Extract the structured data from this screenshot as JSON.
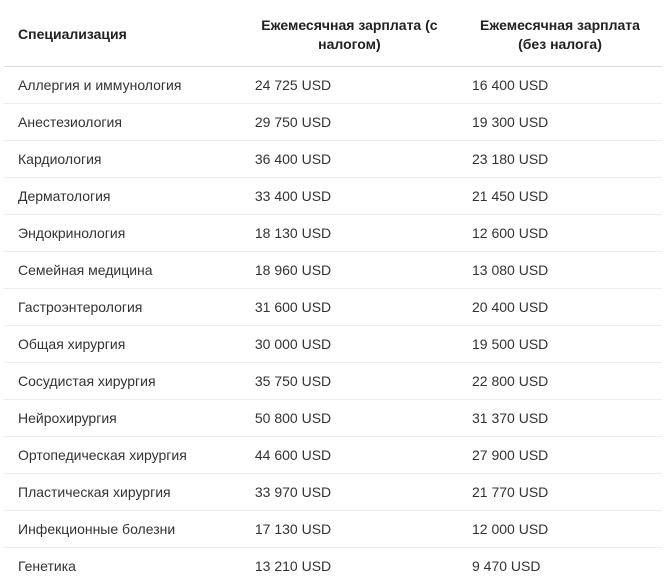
{
  "table": {
    "columns": [
      "Специализация",
      "Ежемесячная зарплата (с налогом)",
      "Ежемесячная зарплата (без налога)"
    ],
    "rows": [
      [
        "Аллергия и иммунология",
        "24 725 USD",
        "16 400 USD"
      ],
      [
        "Анестезиология",
        "29 750 USD",
        "19 300 USD"
      ],
      [
        "Кардиология",
        "36 400 USD",
        "23 180 USD"
      ],
      [
        "Дерматология",
        "33 400 USD",
        "21 450 USD"
      ],
      [
        "Эндокринология",
        "18 130 USD",
        "12 600 USD"
      ],
      [
        "Семейная медицина",
        "18 960 USD",
        "13 080 USD"
      ],
      [
        "Гастроэнтерология",
        "31 600 USD",
        "20 400 USD"
      ],
      [
        "Общая хирургия",
        "30 000 USD",
        "19 500 USD"
      ],
      [
        "Сосудистая хирургия",
        "35 750 USD",
        "22 800 USD"
      ],
      [
        "Нейрохирургия",
        "50 800 USD",
        "31 370 USD"
      ],
      [
        "Ортопедическая хирургия",
        "44 600 USD",
        "27 900 USD"
      ],
      [
        "Пластическая хирургия",
        "33 970 USD",
        "21 770 USD"
      ],
      [
        "Инфекционные болезни",
        "17 130 USD",
        "12 000 USD"
      ],
      [
        "Генетика",
        "13 210 USD",
        "9 470 USD"
      ]
    ],
    "header_fontsize": 14,
    "cell_fontsize": 14,
    "text_color": "#333333",
    "header_color": "#212121",
    "border_color": "#eeeeee",
    "header_border_color": "#dddddd",
    "background_color": "#ffffff",
    "column_widths_pct": [
      36,
      33,
      31
    ]
  }
}
